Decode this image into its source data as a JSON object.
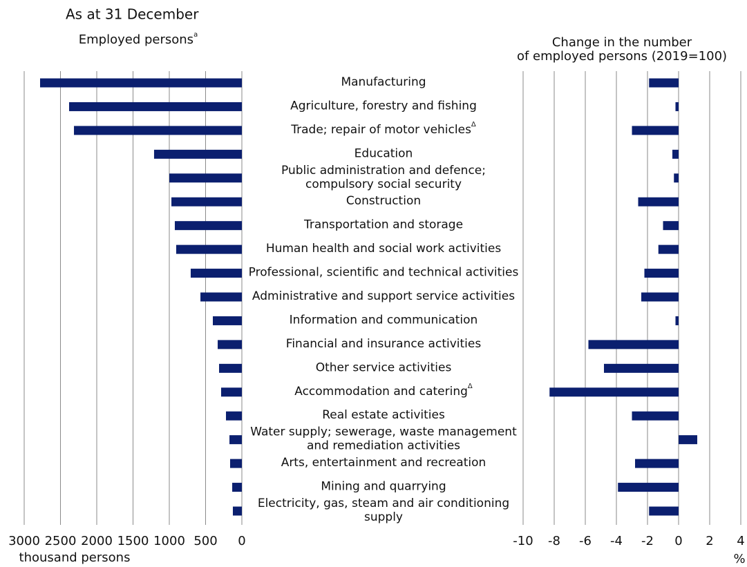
{
  "subtitle": "As at 31 December",
  "chart_data": [
    {
      "type": "hbar",
      "axis_title": "Employed persons",
      "axis_title_superscript": "a",
      "xlabel": "thousand persons",
      "categories": [
        "Manufacturing",
        "Agriculture, forestry and fishing",
        "Trade; repair of motor vehicles",
        "Education",
        "Public administration and defence;\ncompulsory social security",
        "Construction",
        "Transportation and storage",
        "Human health and social work  activities",
        "Professional, scientific and technical activities",
        "Administrative and support service activities",
        "Information and communication",
        "Financial and insurance activities",
        "Other service activities",
        "Accommodation and catering",
        "Real estate activities",
        "Water supply; sewerage, waste management\nand remediation activities",
        "Arts, entertainment and recreation",
        "Mining and quarrying",
        "Electricity, gas, steam and air conditioning\nsupply"
      ],
      "category_superscripts": {
        "2": "Δ",
        "13": "Δ"
      },
      "values": [
        2781,
        2381,
        2314,
        1210,
        1000,
        971,
        924,
        905,
        705,
        571,
        400,
        333,
        314,
        286,
        219,
        171,
        162,
        133,
        124
      ],
      "color": "#0b1f6f",
      "reversed": true,
      "xlim": [
        0,
        3000
      ],
      "xticks": [
        0,
        500,
        1000,
        1500,
        2000,
        2500,
        3000
      ],
      "grid": true
    },
    {
      "type": "hbar",
      "axis_title": "Change in the number\nof employed persons (2019=100)",
      "xlabel": "%",
      "values": [
        -1.9,
        -0.2,
        -3.0,
        -0.4,
        -0.3,
        -2.6,
        -1.0,
        -1.3,
        -2.2,
        -2.4,
        -0.2,
        -5.8,
        -4.8,
        -8.3,
        -3.0,
        1.2,
        -2.8,
        -3.9,
        -1.9
      ],
      "color": "#0b1f6f",
      "reversed": false,
      "xlim": [
        -10,
        4
      ],
      "xticks": [
        -10,
        -8,
        -6,
        -4,
        -2,
        0,
        2,
        4
      ],
      "grid": true
    }
  ]
}
